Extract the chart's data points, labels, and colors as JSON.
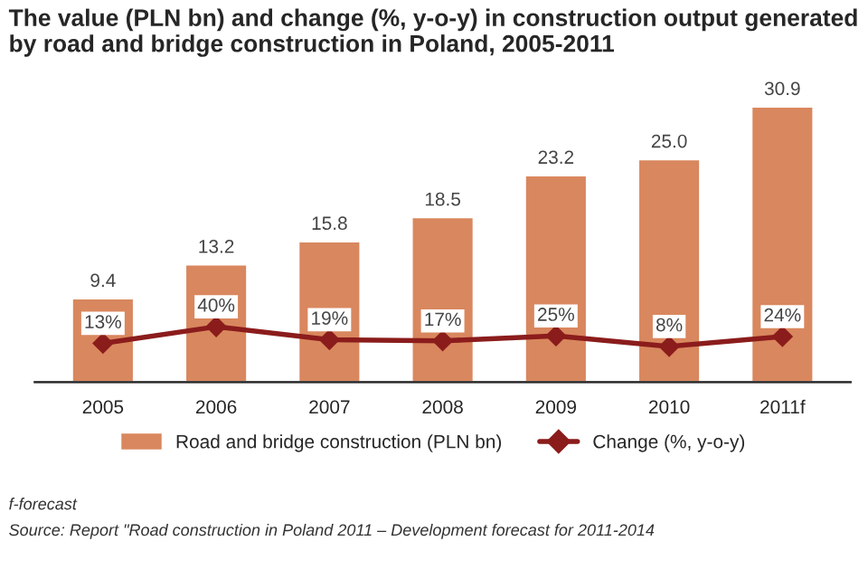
{
  "chart_data": {
    "type": "bar",
    "title": "The value (PLN bn) and change (%, y-o-y) in construction output generated by road and bridge construction in Poland, 2005-2011",
    "categories": [
      "2005",
      "2006",
      "2007",
      "2008",
      "2009",
      "2010",
      "2011f"
    ],
    "series": [
      {
        "name": "Road and bridge construction (PLN bn)",
        "color": "#d9875e",
        "values": [
          9.4,
          13.2,
          15.8,
          18.5,
          23.2,
          25.0,
          30.9
        ],
        "value_labels": [
          "9.4",
          "13.2",
          "15.8",
          "18.5",
          "23.2",
          "25.0",
          "30.9"
        ]
      },
      {
        "name": "Change (%, y-o-y)",
        "type": "line",
        "axis": "y2",
        "color": "#8b1c1c",
        "marker": "diamond",
        "values": [
          13,
          40,
          19,
          17,
          25,
          8,
          24
        ],
        "value_labels": [
          "13%",
          "40%",
          "19%",
          "17%",
          "25%",
          "8%",
          "24%"
        ]
      }
    ],
    "legend": "bottom",
    "grid": false,
    "annotations": [
      "f-forecast",
      "Source: Report \"Road construction in Poland 2011 – Development forecast for 2011-2014"
    ]
  }
}
